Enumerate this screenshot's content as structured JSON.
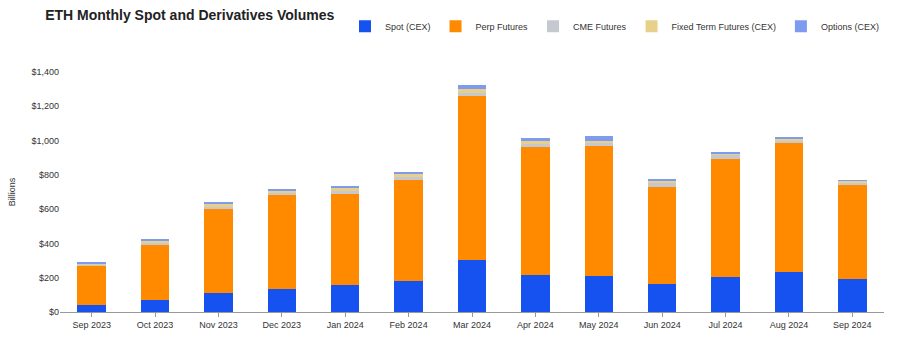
{
  "chart_data": {
    "type": "bar",
    "title": "ETH Monthly Spot and Derivatives Volumes",
    "y_label": "Billions",
    "categories": [
      "Sep 2023",
      "Oct 2023",
      "Nov 2023",
      "Dec 2023",
      "Jan 2024",
      "Feb 2024",
      "Mar 2024",
      "Apr 2024",
      "May 2024",
      "Jun 2024",
      "Jul 2024",
      "Aug 2024",
      "Sep 2024"
    ],
    "stacked": true,
    "legend": "top right",
    "grid": false,
    "ylim": [
      0,
      1400
    ],
    "yticks": [
      {
        "value": 0,
        "label": "$0"
      },
      {
        "value": 200,
        "label": "$200"
      },
      {
        "value": 400,
        "label": "$400"
      },
      {
        "value": 600,
        "label": "$600"
      },
      {
        "value": 800,
        "label": "$800"
      },
      {
        "value": 1000,
        "label": "$1,000"
      },
      {
        "value": 1200,
        "label": "$1,200"
      },
      {
        "value": 1400,
        "label": "$1,400"
      }
    ],
    "series": [
      {
        "name": "Spot (CEX)",
        "color": "#1652f0",
        "values": [
          40,
          70,
          110,
          135,
          155,
          180,
          305,
          215,
          210,
          165,
          205,
          235,
          190
        ]
      },
      {
        "name": "Perp Futures",
        "color": "#ff8a00",
        "values": [
          232,
          325,
          490,
          545,
          535,
          592,
          955,
          750,
          760,
          565,
          690,
          750,
          555
        ]
      },
      {
        "name": "CME Futures",
        "color": "#c5c9cf",
        "values": [
          6,
          10,
          12,
          15,
          15,
          15,
          15,
          15,
          15,
          20,
          20,
          15,
          10
        ]
      },
      {
        "name": "Fixed Term Futures (CEX)",
        "color": "#e8d08a",
        "values": [
          7,
          12,
          18,
          15,
          18,
          18,
          25,
          20,
          15,
          12,
          12,
          12,
          10
        ]
      },
      {
        "name": "Options (CEX)",
        "color": "#7d9cf0",
        "values": [
          5,
          8,
          10,
          10,
          12,
          10,
          25,
          15,
          25,
          13,
          8,
          8,
          5
        ]
      }
    ]
  }
}
